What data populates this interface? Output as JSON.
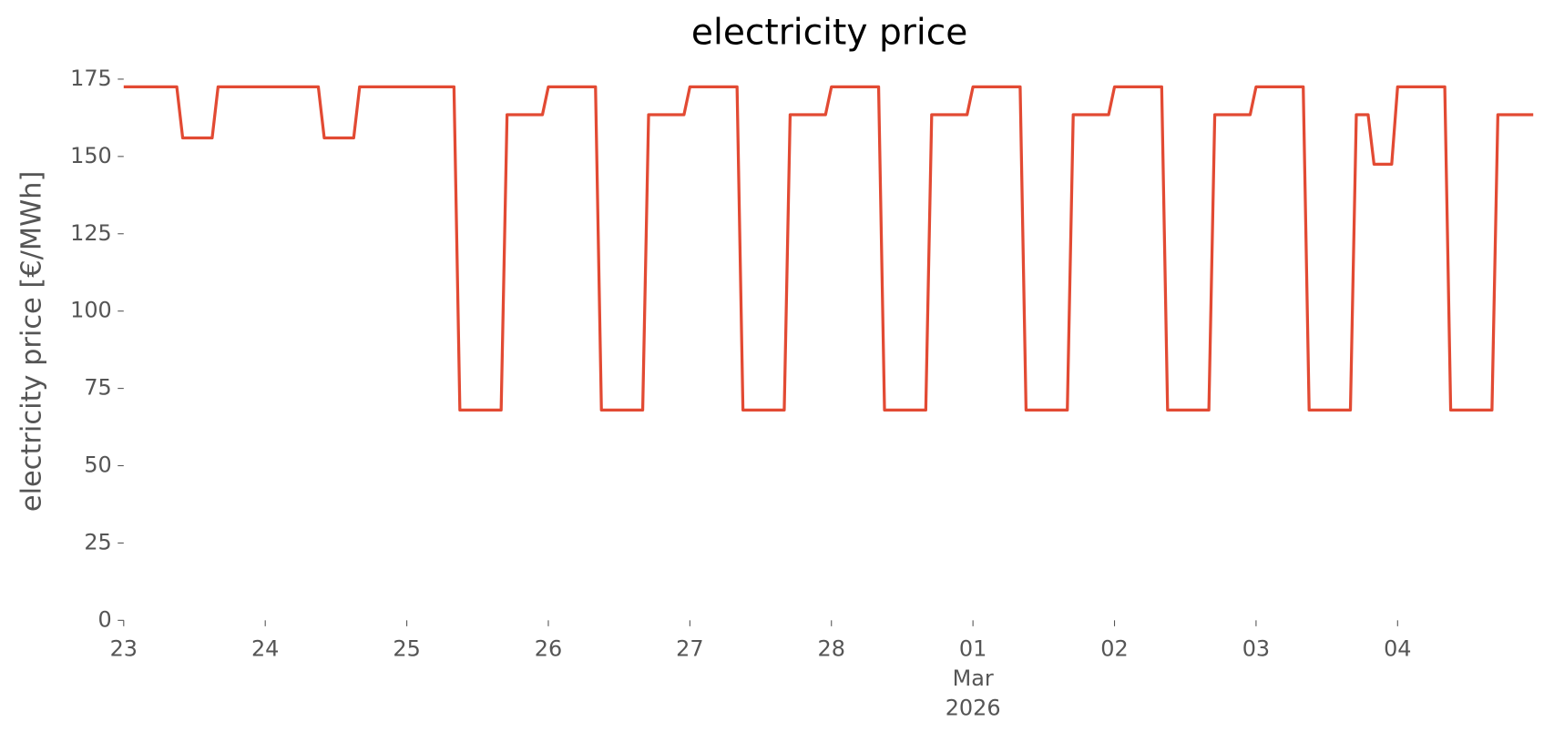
{
  "chart_data": {
    "type": "line",
    "title": "electricity price",
    "ylabel": "electricity price [€/MWh]",
    "x": [
      "2026-02-23T00:00",
      "2026-02-23T09:00",
      "2026-02-23T10:00",
      "2026-02-23T15:00",
      "2026-02-23T16:00",
      "2026-02-24T09:00",
      "2026-02-24T10:00",
      "2026-02-24T15:00",
      "2026-02-24T16:00",
      "2026-02-25T08:00",
      "2026-02-25T09:00",
      "2026-02-25T16:00",
      "2026-02-25T17:00",
      "2026-02-25T23:00",
      "2026-02-26T00:00",
      "2026-02-26T08:00",
      "2026-02-26T09:00",
      "2026-02-26T16:00",
      "2026-02-26T17:00",
      "2026-02-26T23:00",
      "2026-02-27T00:00",
      "2026-02-27T08:00",
      "2026-02-27T09:00",
      "2026-02-27T16:00",
      "2026-02-27T17:00",
      "2026-02-27T23:00",
      "2026-02-28T00:00",
      "2026-02-28T08:00",
      "2026-02-28T09:00",
      "2026-02-28T16:00",
      "2026-02-28T17:00",
      "2026-02-28T23:00",
      "2026-03-01T00:00",
      "2026-03-01T08:00",
      "2026-03-01T09:00",
      "2026-03-01T16:00",
      "2026-03-01T17:00",
      "2026-03-01T23:00",
      "2026-03-02T00:00",
      "2026-03-02T08:00",
      "2026-03-02T09:00",
      "2026-03-02T16:00",
      "2026-03-02T17:00",
      "2026-03-02T23:00",
      "2026-03-03T00:00",
      "2026-03-03T08:00",
      "2026-03-03T09:00",
      "2026-03-03T16:00",
      "2026-03-03T17:00",
      "2026-03-03T19:00",
      "2026-03-03T20:00",
      "2026-03-03T23:00",
      "2026-03-04T00:00",
      "2026-03-04T08:00",
      "2026-03-04T09:00",
      "2026-03-04T16:00",
      "2026-03-04T17:00",
      "2026-03-04T23:00"
    ],
    "series": [
      {
        "name": "electricity price",
        "color": "#e24a33",
        "values": [
          172.5,
          172.5,
          156,
          156,
          172.5,
          172.5,
          156,
          156,
          172.5,
          172.5,
          68,
          68,
          163.5,
          163.5,
          172.5,
          172.5,
          68,
          68,
          163.5,
          163.5,
          172.5,
          172.5,
          68,
          68,
          163.5,
          163.5,
          172.5,
          172.5,
          68,
          68,
          163.5,
          163.5,
          172.5,
          172.5,
          68,
          68,
          163.5,
          163.5,
          172.5,
          172.5,
          68,
          68,
          163.5,
          163.5,
          172.5,
          172.5,
          68,
          68,
          163.5,
          163.5,
          147.5,
          147.5,
          172.5,
          172.5,
          68,
          68,
          163.5,
          163.5
        ]
      }
    ],
    "xlim": [
      "2026-02-23T00:00",
      "2026-03-04T23:00"
    ],
    "xticks": [
      {
        "value": "2026-02-23T00:00",
        "label": "23"
      },
      {
        "value": "2026-02-24T00:00",
        "label": "24"
      },
      {
        "value": "2026-02-25T00:00",
        "label": "25"
      },
      {
        "value": "2026-02-26T00:00",
        "label": "26"
      },
      {
        "value": "2026-02-27T00:00",
        "label": "27"
      },
      {
        "value": "2026-02-28T00:00",
        "label": "28"
      },
      {
        "value": "2026-03-01T00:00",
        "label": "01\nMar\n2026"
      },
      {
        "value": "2026-03-02T00:00",
        "label": "02"
      },
      {
        "value": "2026-03-03T00:00",
        "label": "03"
      },
      {
        "value": "2026-03-04T00:00",
        "label": "04"
      }
    ],
    "ylim": [
      0,
      175
    ],
    "yticks": [
      0,
      25,
      50,
      75,
      100,
      125,
      150,
      175
    ],
    "grid": false
  }
}
